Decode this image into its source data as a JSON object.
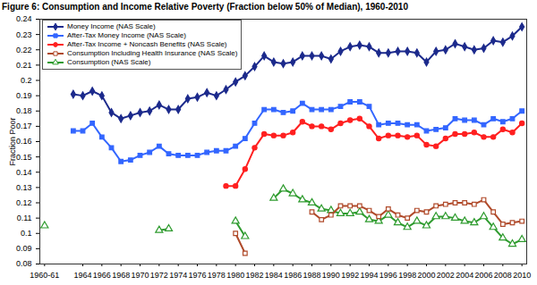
{
  "chart_data": {
    "type": "line",
    "title": "Figure 6: Consumption and Income Relative Poverty (Fraction below 50% of Median), 1960-2010",
    "y_label": "Fraction Poor",
    "categories": [
      "1960-61",
      null,
      null,
      null,
      "1964",
      null,
      "1966",
      null,
      "1968",
      null,
      "1970",
      null,
      "1972",
      null,
      "1974",
      null,
      "1976",
      null,
      "1978",
      null,
      "1980",
      null,
      "1982",
      null,
      "1984",
      null,
      "1986",
      null,
      "1988",
      null,
      "1990",
      null,
      "1992",
      null,
      "1994",
      null,
      "1996",
      null,
      "1998",
      null,
      "2000",
      null,
      "2002",
      null,
      "2004",
      null,
      "2006",
      null,
      "2008",
      null,
      "2010"
    ],
    "ylim": [
      0.08,
      0.24
    ],
    "yticks": [
      0.08,
      0.09,
      0.1,
      0.11,
      0.12,
      0.13,
      0.14,
      0.15,
      0.16,
      0.17,
      0.18,
      0.19,
      0.2,
      0.21,
      0.22,
      0.23,
      0.24
    ],
    "grid": false,
    "legend": "top-left",
    "series": [
      {
        "name": "Money Income (NAS Scale)",
        "color": "#1c2a8c",
        "marker": "diamond",
        "values": [
          null,
          null,
          null,
          0.191,
          0.19,
          0.193,
          0.19,
          0.179,
          0.175,
          0.177,
          0.179,
          0.18,
          0.184,
          0.181,
          0.181,
          0.188,
          0.189,
          0.192,
          0.19,
          0.194,
          0.199,
          0.203,
          0.209,
          0.216,
          0.212,
          0.211,
          0.212,
          0.216,
          0.216,
          0.216,
          0.214,
          0.219,
          0.222,
          0.223,
          0.222,
          0.218,
          0.218,
          0.219,
          0.219,
          0.218,
          0.212,
          0.219,
          0.22,
          0.224,
          0.222,
          0.22,
          0.221,
          0.226,
          0.225,
          0.229,
          0.235
        ]
      },
      {
        "name": "After-Tax Money Income (NAS Scale)",
        "color": "#3366ff",
        "marker": "square",
        "values": [
          null,
          null,
          null,
          0.167,
          0.167,
          0.172,
          0.163,
          0.156,
          0.147,
          0.148,
          0.151,
          0.153,
          0.157,
          0.152,
          0.151,
          0.151,
          0.151,
          0.153,
          0.154,
          0.154,
          0.157,
          0.162,
          0.172,
          0.181,
          0.181,
          0.179,
          0.18,
          0.185,
          0.181,
          0.181,
          0.181,
          0.183,
          0.186,
          0.186,
          0.183,
          0.171,
          0.172,
          0.172,
          0.171,
          0.171,
          0.167,
          0.168,
          0.169,
          0.175,
          0.174,
          0.174,
          0.171,
          0.175,
          0.173,
          0.175,
          0.18
        ]
      },
      {
        "name": "After-Tax Income + Noncash Benefits (NAS Scale)",
        "color": "#ff2020",
        "marker": "circle",
        "values": [
          null,
          null,
          null,
          null,
          null,
          null,
          null,
          null,
          null,
          null,
          null,
          null,
          null,
          null,
          null,
          null,
          null,
          null,
          null,
          0.131,
          0.131,
          0.142,
          0.156,
          0.165,
          0.164,
          0.164,
          0.166,
          0.173,
          0.17,
          0.17,
          0.168,
          0.172,
          0.174,
          0.175,
          0.17,
          0.162,
          0.164,
          0.164,
          0.163,
          0.164,
          0.158,
          0.157,
          0.162,
          0.165,
          0.165,
          0.166,
          0.163,
          0.163,
          0.168,
          0.166,
          0.172
        ]
      },
      {
        "name": "Consumption Including Health Insurance (NAS Scale)",
        "color": "#b04a2a",
        "marker": "square-open",
        "values": [
          null,
          null,
          null,
          null,
          null,
          null,
          null,
          null,
          null,
          null,
          null,
          null,
          null,
          null,
          null,
          null,
          null,
          null,
          null,
          null,
          0.1,
          0.087,
          null,
          null,
          null,
          null,
          null,
          null,
          0.114,
          0.109,
          0.112,
          0.118,
          0.118,
          0.118,
          0.115,
          0.111,
          0.116,
          0.112,
          0.11,
          0.115,
          0.114,
          0.118,
          0.119,
          0.12,
          0.12,
          0.119,
          0.122,
          0.114,
          0.106,
          0.107,
          0.108
        ]
      },
      {
        "name": "Consumption (NAS Scale)",
        "color": "#2e9b2e",
        "marker": "triangle-open",
        "values": [
          0.105,
          null,
          null,
          null,
          null,
          null,
          null,
          null,
          null,
          null,
          null,
          null,
          0.102,
          0.103,
          null,
          null,
          null,
          null,
          null,
          null,
          0.108,
          0.098,
          null,
          null,
          0.123,
          0.129,
          0.126,
          0.122,
          0.12,
          0.116,
          0.115,
          0.113,
          0.113,
          0.114,
          0.109,
          0.108,
          0.112,
          0.107,
          0.104,
          0.108,
          0.105,
          0.111,
          0.111,
          0.11,
          0.108,
          0.107,
          0.111,
          0.104,
          0.097,
          0.093,
          0.096
        ]
      }
    ]
  }
}
